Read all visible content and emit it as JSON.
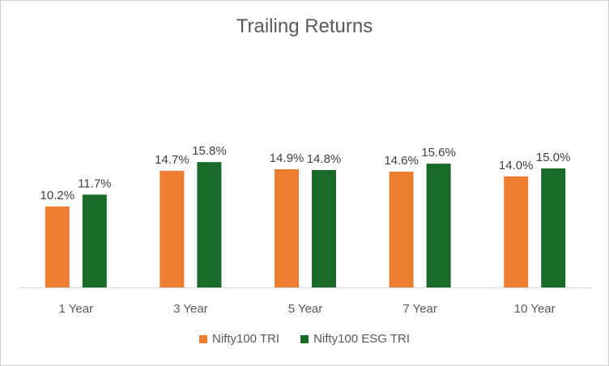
{
  "chart_data": {
    "type": "bar",
    "title": "Trailing Returns",
    "xlabel": "",
    "ylabel": "",
    "categories": [
      "1 Year",
      "3 Year",
      "5 Year",
      "7 Year",
      "10 Year"
    ],
    "series": [
      {
        "name": "Nifty100 TRI",
        "color": "#ED7D31",
        "values": [
          10.2,
          14.7,
          14.9,
          14.6,
          14.0
        ],
        "labels": [
          "10.2%",
          "14.7%",
          "14.9%",
          "14.6%",
          "14.0%"
        ]
      },
      {
        "name": "Nifty100 ESG TRI",
        "color": "#1A6B2A",
        "values": [
          11.7,
          15.8,
          14.8,
          15.6,
          15.0
        ],
        "labels": [
          "11.7%",
          "15.8%",
          "14.8%",
          "15.6%",
          "15.0%"
        ]
      }
    ],
    "ylim": [
      0,
      18
    ],
    "grid": false,
    "legend": "bottom"
  }
}
